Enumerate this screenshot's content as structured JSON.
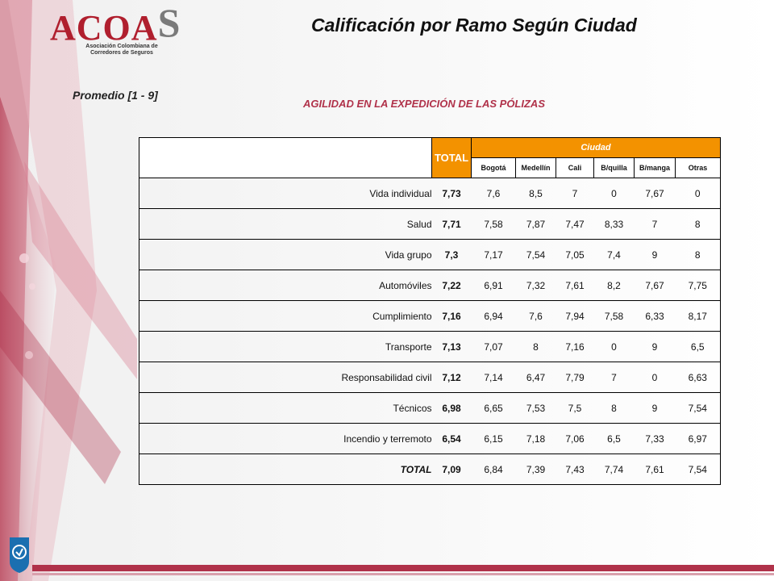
{
  "logo": {
    "word_main": "ACOA",
    "word_s": "S",
    "sub_line1": "Asociación Colombiana de",
    "sub_line2": "Corredores de Seguros"
  },
  "title": "Calificación por Ramo Según Ciudad",
  "subtitle_left": "Promedio  [1 - 9]",
  "subtitle_main": "AGILIDAD EN LA EXPEDICIÓN DE LAS PÓLIZAS",
  "colors": {
    "accent": "#f39200",
    "brand": "#b0324a"
  },
  "table": {
    "total_header": "TOTAL",
    "group_header": "Ciudad",
    "cities": [
      "Bogotá",
      "Medellín",
      "Cali",
      "B/quilla",
      "B/manga",
      "Otras"
    ],
    "rows": [
      {
        "label": "Vida individual",
        "total": "7,73",
        "values": [
          "7,6",
          "8,5",
          "7",
          "0",
          "7,67",
          "0"
        ]
      },
      {
        "label": "Salud",
        "total": "7,71",
        "values": [
          "7,58",
          "7,87",
          "7,47",
          "8,33",
          "7",
          "8"
        ]
      },
      {
        "label": "Vida grupo",
        "total": "7,3",
        "values": [
          "7,17",
          "7,54",
          "7,05",
          "7,4",
          "9",
          "8"
        ]
      },
      {
        "label": "Automóviles",
        "total": "7,22",
        "values": [
          "6,91",
          "7,32",
          "7,61",
          "8,2",
          "7,67",
          "7,75"
        ]
      },
      {
        "label": "Cumplimiento",
        "total": "7,16",
        "values": [
          "6,94",
          "7,6",
          "7,94",
          "7,58",
          "6,33",
          "8,17"
        ]
      },
      {
        "label": "Transporte",
        "total": "7,13",
        "values": [
          "7,07",
          "8",
          "7,16",
          "0",
          "9",
          "6,5"
        ]
      },
      {
        "label": "Responsabilidad civil",
        "total": "7,12",
        "values": [
          "7,14",
          "6,47",
          "7,79",
          "7",
          "0",
          "6,63"
        ]
      },
      {
        "label": "Técnicos",
        "total": "6,98",
        "values": [
          "6,65",
          "7,53",
          "7,5",
          "8",
          "9",
          "7,54"
        ]
      },
      {
        "label": "Incendio y terremoto",
        "total": "6,54",
        "values": [
          "6,15",
          "7,18",
          "7,06",
          "6,5",
          "7,33",
          "6,97"
        ]
      },
      {
        "label": "TOTAL",
        "total": "7,09",
        "values": [
          "6,84",
          "7,39",
          "7,43",
          "7,74",
          "7,61",
          "7,54"
        ]
      }
    ]
  }
}
